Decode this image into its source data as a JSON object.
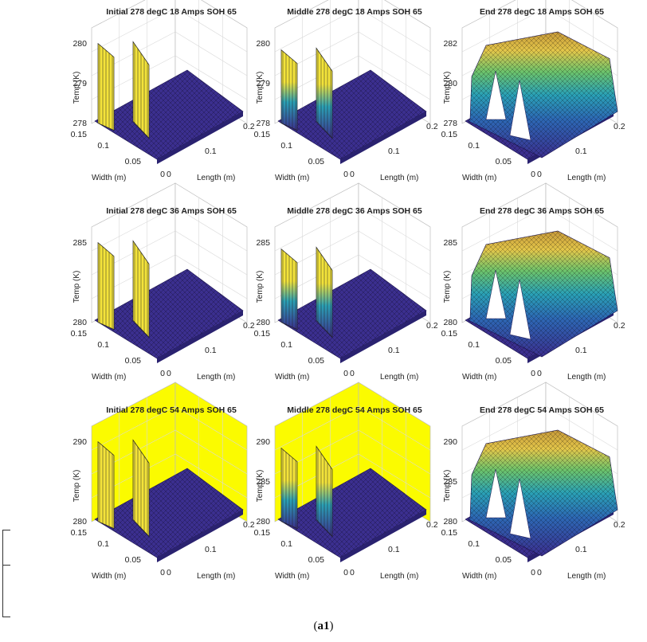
{
  "figure": {
    "caption_prefix": "(",
    "caption_bold": "a1",
    "caption_suffix": ")"
  },
  "chart_data": [
    {
      "type": "surface",
      "stage": "initial",
      "title": "Initial 278 degC 18 Amps SOH 65",
      "xlabel": "Length (m)",
      "ylabel": "Width (m)",
      "zlabel": "Temp (K)",
      "zticks": [
        "278",
        "279",
        "280"
      ],
      "xticks": [
        "0",
        "0.1",
        "0.2"
      ],
      "yticks": [
        "0",
        "0.05",
        "0.1",
        "0.15"
      ],
      "base_temp": 278,
      "peak_temp": 280,
      "back_wall": "white"
    },
    {
      "type": "surface",
      "stage": "middle",
      "title": "Middle 278 degC 18 Amps SOH 65",
      "xlabel": "Length (m)",
      "ylabel": "Width (m)",
      "zlabel": "Temp (K)",
      "zticks": [
        "278",
        "279",
        "280"
      ],
      "xticks": [
        "0",
        "0.1",
        "0.2"
      ],
      "yticks": [
        "0",
        "0.05",
        "0.1",
        "0.15"
      ],
      "base_temp": 278,
      "peak_temp": 279.5,
      "back_wall": "white"
    },
    {
      "type": "surface",
      "stage": "end",
      "title": "End 278 degC 18 Amps SOH 65",
      "xlabel": "Length (m)",
      "ylabel": "Width (m)",
      "zlabel": "Temp (K)",
      "zticks": [
        "278",
        "280",
        "282"
      ],
      "xticks": [
        "0",
        "0.1",
        "0.2"
      ],
      "yticks": [
        "0",
        "0.05",
        "0.1",
        "0.15"
      ],
      "base_temp": 278,
      "peak_temp": 283,
      "back_wall": "white"
    },
    {
      "type": "surface",
      "stage": "initial",
      "title": "Initial 278 degC 36 Amps SOH 65",
      "xlabel": "Length (m)",
      "ylabel": "Width (m)",
      "zlabel": "Temp (K)",
      "zticks": [
        "280",
        "285"
      ],
      "xticks": [
        "0",
        "0.1",
        "0.2"
      ],
      "yticks": [
        "0",
        "0.05",
        "0.1",
        "0.15"
      ],
      "base_temp": 278,
      "peak_temp": 285.5,
      "back_wall": "white"
    },
    {
      "type": "surface",
      "stage": "middle",
      "title": "Middle 278 degC 36 Amps SOH 65",
      "xlabel": "Length (m)",
      "ylabel": "Width (m)",
      "zlabel": "Temp (K)",
      "zticks": [
        "280",
        "285"
      ],
      "xticks": [
        "0",
        "0.1",
        "0.2"
      ],
      "yticks": [
        "0",
        "0.05",
        "0.1",
        "0.15"
      ],
      "base_temp": 278,
      "peak_temp": 285,
      "back_wall": "white"
    },
    {
      "type": "surface",
      "stage": "end",
      "title": "End 278 degC 36 Amps SOH 65",
      "xlabel": "Length (m)",
      "ylabel": "Width (m)",
      "zlabel": "Temp (K)",
      "zticks": [
        "280",
        "285"
      ],
      "xticks": [
        "0",
        "0.1",
        "0.2"
      ],
      "yticks": [
        "0",
        "0.05",
        "0.1",
        "0.15"
      ],
      "base_temp": 278,
      "peak_temp": 286,
      "back_wall": "white"
    },
    {
      "type": "surface",
      "stage": "initial",
      "title": "Initial 278 degC 54 Amps SOH 65",
      "xlabel": "Length (m)",
      "ylabel": "Width (m)",
      "zlabel": "Temp (K)",
      "zticks": [
        "280",
        "290"
      ],
      "xticks": [
        "0",
        "0.1",
        "0.2"
      ],
      "yticks": [
        "0",
        "0.05",
        "0.1",
        "0.15"
      ],
      "base_temp": 278,
      "peak_temp": 292,
      "back_wall": "yellow"
    },
    {
      "type": "surface",
      "stage": "middle",
      "title": "Middle 278 degC 54 Amps SOH 65",
      "xlabel": "Length (m)",
      "ylabel": "Width (m)",
      "zlabel": "Temp (K)",
      "zticks": [
        "280",
        "285",
        "290"
      ],
      "xticks": [
        "0",
        "0.1",
        "0.2"
      ],
      "yticks": [
        "0",
        "0.05",
        "0.1",
        "0.15"
      ],
      "base_temp": 278,
      "peak_temp": 291,
      "back_wall": "yellow"
    },
    {
      "type": "surface",
      "stage": "end",
      "title": "End 278 degC 54 Amps SOH 65",
      "xlabel": "Length (m)",
      "ylabel": "Width (m)",
      "zlabel": "Temp (K)",
      "zticks": [
        "280",
        "285",
        "290"
      ],
      "xticks": [
        "0",
        "0.1",
        "0.2"
      ],
      "yticks": [
        "0",
        "0.05",
        "0.1",
        "0.15"
      ],
      "base_temp": 278,
      "peak_temp": 292,
      "back_wall": "white"
    }
  ],
  "colors": {
    "surface_low": "#3b2f8f",
    "surface_mid": "#2aa1b6",
    "surface_green": "#6cc36c",
    "surface_high": "#f3e33a",
    "surface_top": "#c79a3a",
    "wall_yellow": "#fbfb00",
    "grid": "#d9d9d9"
  }
}
